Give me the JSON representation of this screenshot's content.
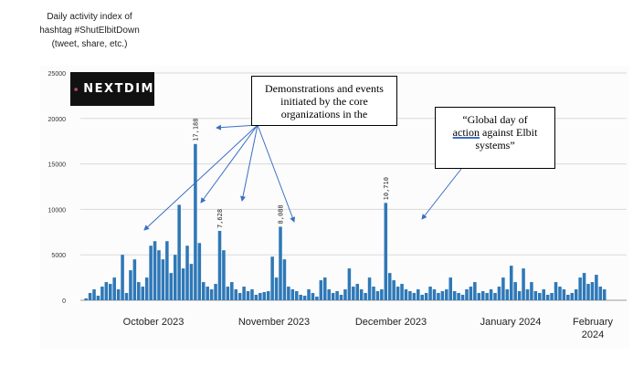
{
  "y_axis_caption": [
    "Daily activity index of",
    "hashtag #ShutElbitDown",
    "(tweet, share, etc.)"
  ],
  "logo": {
    "text": "NEXTDIM"
  },
  "annotations": {
    "callout1": [
      "Demonstrations and events",
      "initiated  by the core",
      "organizations  in the"
    ],
    "callout2": {
      "line1": "“Global day of",
      "line2_underlined": "action",
      "line2_rest": " against Elbit",
      "line3": "systems”"
    }
  },
  "colors": {
    "bar": "#2e78b7",
    "arrow": "#3a6fc4",
    "axis": "#9a9a9a",
    "grid": "#d9d9d9"
  },
  "chart_data": {
    "type": "bar",
    "ylim": [
      0,
      25000
    ],
    "yticks": [
      "0",
      "5000",
      "10000",
      "15000",
      "20000",
      "25000"
    ],
    "x_month_labels": [
      "October 2023",
      "November 2023",
      "December 2023",
      "January 2024",
      "February 2024"
    ],
    "peak_labels": [
      "17,188",
      "10,710",
      "8,088",
      "7,628"
    ],
    "values": [
      200,
      800,
      1200,
      500,
      1500,
      2000,
      1800,
      2500,
      1200,
      5000,
      800,
      3300,
      4500,
      2000,
      1500,
      2500,
      6000,
      6500,
      5500,
      4500,
      6500,
      3000,
      5000,
      10500,
      3500,
      6000,
      4000,
      17188,
      6300,
      2000,
      1500,
      1200,
      1800,
      7628,
      5500,
      1500,
      2000,
      1200,
      800,
      1500,
      1000,
      1200,
      600,
      800,
      900,
      1000,
      4792,
      2500,
      8088,
      4500,
      1500,
      1200,
      1000,
      600,
      500,
      1200,
      800,
      400,
      2200,
      2500,
      1200,
      800,
      1000,
      600,
      1200,
      3500,
      1500,
      1800,
      1200,
      800,
      2500,
      1500,
      1000,
      1200,
      10710,
      3000,
      2200,
      1500,
      1800,
      1200,
      1000,
      800,
      1200,
      600,
      800,
      1500,
      1200,
      800,
      1000,
      1200,
      2500,
      1000,
      800,
      600,
      1200,
      1500,
      2000,
      800,
      1000,
      800,
      1200,
      800,
      1500,
      2500,
      1200,
      3800,
      2000,
      1000,
      3500,
      1200,
      2000,
      1000,
      800,
      1200,
      600,
      800,
      2000,
      1500,
      1200,
      600,
      800,
      1200,
      2500,
      3000,
      1800,
      2000,
      2800,
      1500,
      1200
    ]
  }
}
